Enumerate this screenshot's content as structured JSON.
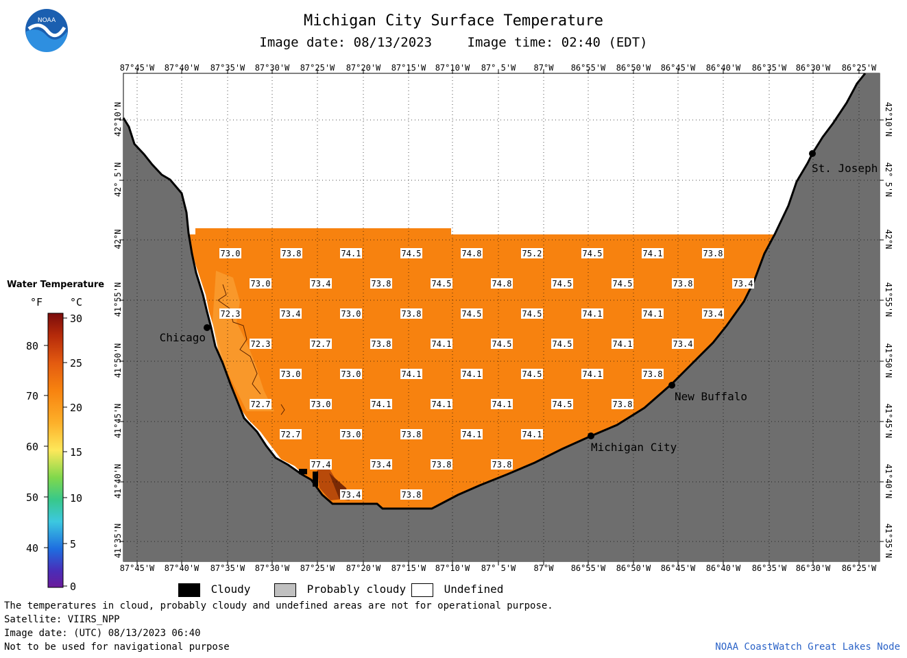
{
  "title": "Michigan City Surface Temperature",
  "image_date": "Image date: 08/13/2023",
  "image_time": "Image time: 02:40 (EDT)",
  "lon_labels": [
    "87°45'W",
    "87°40'W",
    "87°35'W",
    "87°30'W",
    "87°25'W",
    "87°20'W",
    "87°15'W",
    "87°10'W",
    "87° 5'W",
    "87°W",
    "86°55'W",
    "86°50'W",
    "86°45'W",
    "86°40'W",
    "86°35'W",
    "86°30'W",
    "86°25'W"
  ],
  "lat_labels": [
    "42°10'N",
    "42° 5'N",
    "42°N",
    "41°55'N",
    "41°50'N",
    "41°45'N",
    "41°40'N",
    "41°35'N"
  ],
  "cities": [
    {
      "name": "St. Joseph"
    },
    {
      "name": "Chicago"
    },
    {
      "name": "New Buffalo"
    },
    {
      "name": "Michigan City"
    }
  ],
  "temperatures": [
    [
      "73.0",
      "73.8",
      "74.1",
      "74.5",
      "74.8",
      "75.2",
      "74.5",
      "74.1",
      "73.8"
    ],
    [
      "73.0",
      "73.4",
      "73.8",
      "74.5",
      "74.8",
      "74.5",
      "74.5",
      "73.8",
      "73.4"
    ],
    [
      "72.3",
      "73.4",
      "73.0",
      "73.8",
      "74.5",
      "74.5",
      "74.1",
      "74.1",
      "73.4"
    ],
    [
      "72.3",
      "72.7",
      "73.8",
      "74.1",
      "74.5",
      "74.5",
      "74.1",
      "73.4"
    ],
    [
      "73.0",
      "73.0",
      "74.1",
      "74.1",
      "74.5",
      "74.1",
      "73.8"
    ],
    [
      "72.7",
      "73.0",
      "74.1",
      "74.1",
      "74.1",
      "74.5",
      "73.8"
    ],
    [
      "72.7",
      "73.0",
      "73.8",
      "74.1",
      "74.1"
    ],
    [
      "77.4",
      "73.4",
      "73.8",
      "73.8"
    ],
    [
      "73.4",
      "73.8"
    ]
  ],
  "colorbar": {
    "title": "Water Temperature",
    "unit_f": "°F",
    "unit_c": "°C",
    "f_ticks": [
      "80",
      "70",
      "60",
      "50",
      "40"
    ],
    "c_ticks": [
      "30",
      "25",
      "20",
      "15",
      "10",
      "5",
      "0"
    ]
  },
  "legend": {
    "cloudy": "Cloudy",
    "probably_cloudy": "Probably cloudy",
    "undefined": "Undefined"
  },
  "footer": {
    "line1": "The temperatures in cloud, probably cloudy and undefined areas are not for operational purpose.",
    "line2": "Satellite: VIIRS_NPP",
    "line3": "Image date: (UTC) 08/13/2023  06:40",
    "line4": "Not to be used for navigational purpose",
    "credit": "NOAA CoastWatch Great Lakes Node"
  },
  "colors": {
    "water": "#f7820f",
    "land": "#6e6e6e",
    "cloudy": "#000000",
    "probably_cloudy": "#c0c0c0",
    "undefined": "#ffffff"
  }
}
